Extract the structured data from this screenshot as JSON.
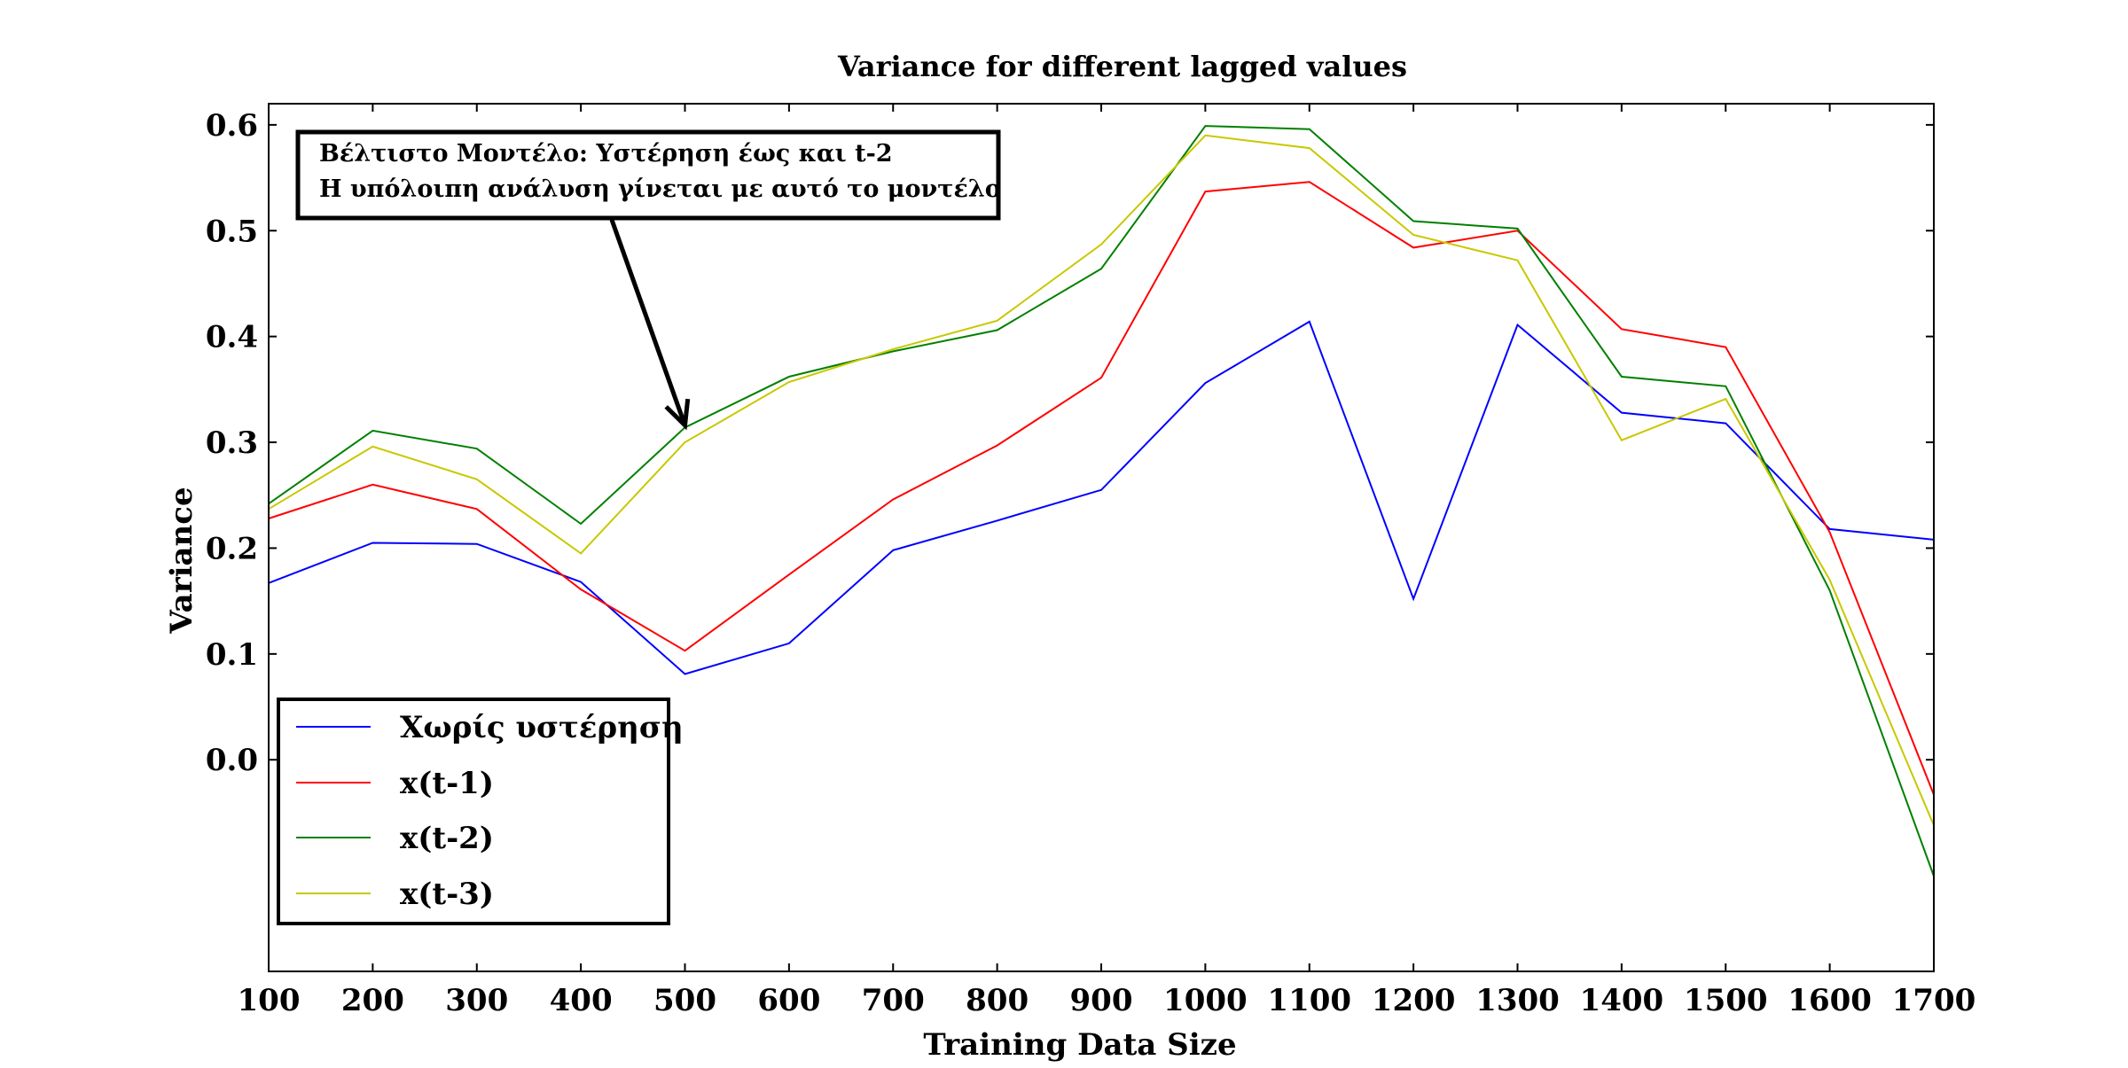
{
  "chart_data": {
    "type": "line",
    "title": "Variance for different lagged values",
    "xlabel": "Training Data Size",
    "ylabel": "Variance",
    "x": [
      100,
      200,
      300,
      400,
      500,
      600,
      700,
      800,
      900,
      1000,
      1100,
      1200,
      1300,
      1400,
      1500,
      1600,
      1700
    ],
    "xticks": [
      "100",
      "200",
      "300",
      "400",
      "500",
      "600",
      "700",
      "800",
      "900",
      "1000",
      "1100",
      "1200",
      "1300",
      "1400",
      "1500",
      "1600",
      "1700"
    ],
    "xlim": [
      100,
      1700
    ],
    "yticks": [
      0.0,
      0.1,
      0.2,
      0.3,
      0.4,
      0.5,
      0.6
    ],
    "ytick_labels": [
      "0.0",
      "0.1",
      "0.2",
      "0.3",
      "0.4",
      "0.5",
      "0.6"
    ],
    "ylim": [
      -0.2,
      0.62
    ],
    "grid": false,
    "legend_position": "bottom-left",
    "series": [
      {
        "name": "Χωρίς υστέρηση",
        "color": "#0000ff",
        "values": [
          0.167,
          0.205,
          0.204,
          0.168,
          0.081,
          0.11,
          0.198,
          0.226,
          0.255,
          0.356,
          0.414,
          0.152,
          0.411,
          0.328,
          0.318,
          0.218,
          0.208
        ]
      },
      {
        "name": "x(t-1)",
        "color": "#ff0000",
        "values": [
          0.228,
          0.26,
          0.237,
          0.161,
          0.103,
          0.175,
          0.246,
          0.297,
          0.361,
          0.537,
          0.546,
          0.484,
          0.5,
          0.407,
          0.39,
          0.215,
          -0.033
        ]
      },
      {
        "name": "x(t-2)",
        "color": "#008000",
        "values": [
          0.242,
          0.311,
          0.294,
          0.223,
          0.314,
          0.362,
          0.386,
          0.406,
          0.464,
          0.599,
          0.596,
          0.509,
          0.502,
          0.362,
          0.353,
          0.16,
          -0.11
        ]
      },
      {
        "name": "x(t-3)",
        "color": "#c8c800",
        "values": [
          0.237,
          0.296,
          0.265,
          0.195,
          0.3,
          0.357,
          0.388,
          0.415,
          0.487,
          0.59,
          0.578,
          0.496,
          0.472,
          0.302,
          0.341,
          0.17,
          -0.062
        ]
      }
    ],
    "annotations": [
      {
        "lines": [
          "Βέλτιστο Μοντέλο: Υστέρηση έως και t-2",
          "Η υπόλοιπη ανάλυση γίνεται με αυτό το μοντέλο"
        ],
        "arrow_target": {
          "x": 500,
          "y": 0.316
        }
      }
    ]
  }
}
